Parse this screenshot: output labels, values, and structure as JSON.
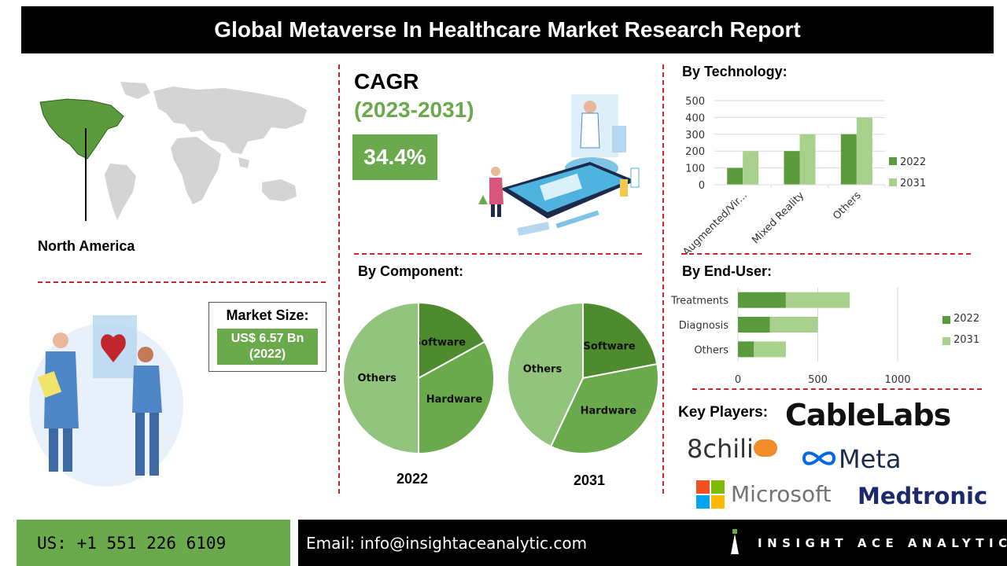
{
  "title": "Global Metaverse In Healthcare Market  Research Report",
  "region": {
    "label": "North America"
  },
  "cagr": {
    "label": "CAGR",
    "years": "(2023-2031)",
    "value": "34.4%"
  },
  "market_size": {
    "label": "Market Size:",
    "value": "US$ 6.57 Bn",
    "year": "(2022)"
  },
  "sections": {
    "technology": "By Technology:",
    "component": "By Component:",
    "end_user": "By End-User:",
    "key_players": "Key Players:"
  },
  "key_players": [
    "CableLabs",
    "8chili",
    "Meta",
    "Microsoft",
    "Medtronic"
  ],
  "footer": {
    "phone": "US: +1 551 226 6109",
    "email": "Email: info@insightaceanalytic.com",
    "brand": "INSIGHT ACE ANALYTIC"
  },
  "colors": {
    "series_2022": "#5c9b3d",
    "series_2031": "#a9d18e",
    "accent": "#6aaa4d",
    "divider": "#c0272d"
  },
  "chart_data": [
    {
      "type": "bar",
      "orientation": "vertical",
      "categories": [
        "Augmented/Vir...",
        "Mixed Reality",
        "Others"
      ],
      "series": [
        {
          "name": "2022",
          "values": [
            100,
            200,
            300
          ]
        },
        {
          "name": "2031",
          "values": [
            200,
            300,
            400
          ]
        }
      ],
      "ylim": [
        0,
        500
      ],
      "yticks": [
        0,
        100,
        200,
        300,
        400,
        500
      ],
      "grid": true,
      "legend": "right"
    },
    {
      "type": "pie",
      "title": "2022",
      "labels": [
        "Software",
        "Hardware",
        "Others"
      ],
      "values": [
        17,
        33,
        50
      ]
    },
    {
      "type": "pie",
      "title": "2031",
      "labels": [
        "Software",
        "Hardware",
        "Others"
      ],
      "values": [
        22,
        35,
        43
      ]
    },
    {
      "type": "bar",
      "orientation": "horizontal",
      "stacked": true,
      "categories": [
        "Treatments",
        "Diagnosis",
        "Others"
      ],
      "series": [
        {
          "name": "2022",
          "values": [
            300,
            200,
            100
          ]
        },
        {
          "name": "2031",
          "values": [
            400,
            300,
            200
          ]
        }
      ],
      "xlim": [
        0,
        1000
      ],
      "xticks": [
        0,
        500,
        1000
      ],
      "grid": true,
      "legend": "right"
    }
  ]
}
